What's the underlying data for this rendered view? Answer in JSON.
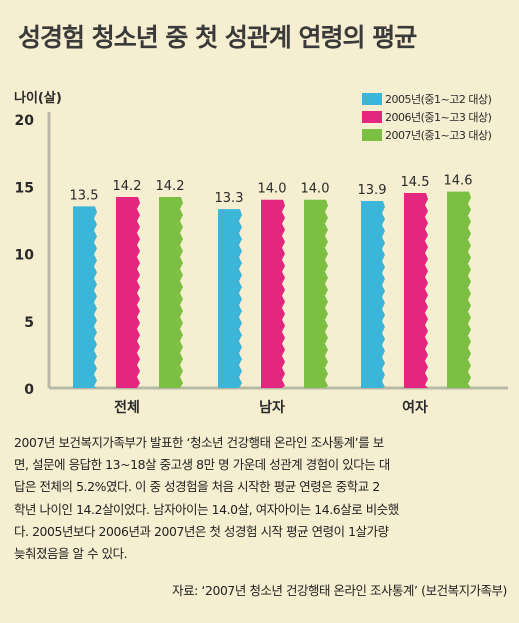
{
  "title": "성경험 청소년 중 첫 성관계 연령의 평균",
  "chart_data": {
    "type": "bar",
    "ylabel": "나이(살)",
    "xlabel": "",
    "ylim": [
      0,
      20
    ],
    "yticks": [
      "0",
      "5",
      "10",
      "15",
      "20"
    ],
    "categories": [
      "전체",
      "남자",
      "여자"
    ],
    "series": [
      {
        "name": "2005년(중1~고2 대상)",
        "color": "#3bb6d9",
        "values": [
          13.5,
          13.3,
          13.9
        ],
        "labels": [
          "13.5",
          "13.3",
          "13.9"
        ]
      },
      {
        "name": "2006년(중1~고3 대상)",
        "color": "#e3267f",
        "values": [
          14.2,
          14.0,
          14.5
        ],
        "labels": [
          "14.2",
          "14.0",
          "14.5"
        ]
      },
      {
        "name": "2007년(중1~고3 대상)",
        "color": "#7bc043",
        "values": [
          14.2,
          14.0,
          14.6
        ],
        "labels": [
          "14.2",
          "14.0",
          "14.6"
        ]
      }
    ],
    "legend": "top-right",
    "grid": false
  },
  "description": [
    "2007년 보건복지가족부가 발표한 ‘청소년 건강행태 온라인 조사통계’를 보",
    "면, 설문에 응답한 13~18살 중고생 8만 명 가운데 성관계 경험이 있다는 대",
    "답은 전체의 5.2%였다. 이 중 성경험을 처음 시작한 평균 연령은 중학교 2",
    "학년 나이인 14.2살이었다. 남자아이는 14.0살, 여자아이는 14.6살로 비슷했",
    "다. 2005년보다 2006년과 2007년은 첫 성경험 시작 평균 연령이 1살가량",
    "늦춰졌음을 알 수 있다."
  ],
  "source": "자료: ‘2007년 청소년 건강행태 온라인 조사통계’ (보건복지가족부)"
}
